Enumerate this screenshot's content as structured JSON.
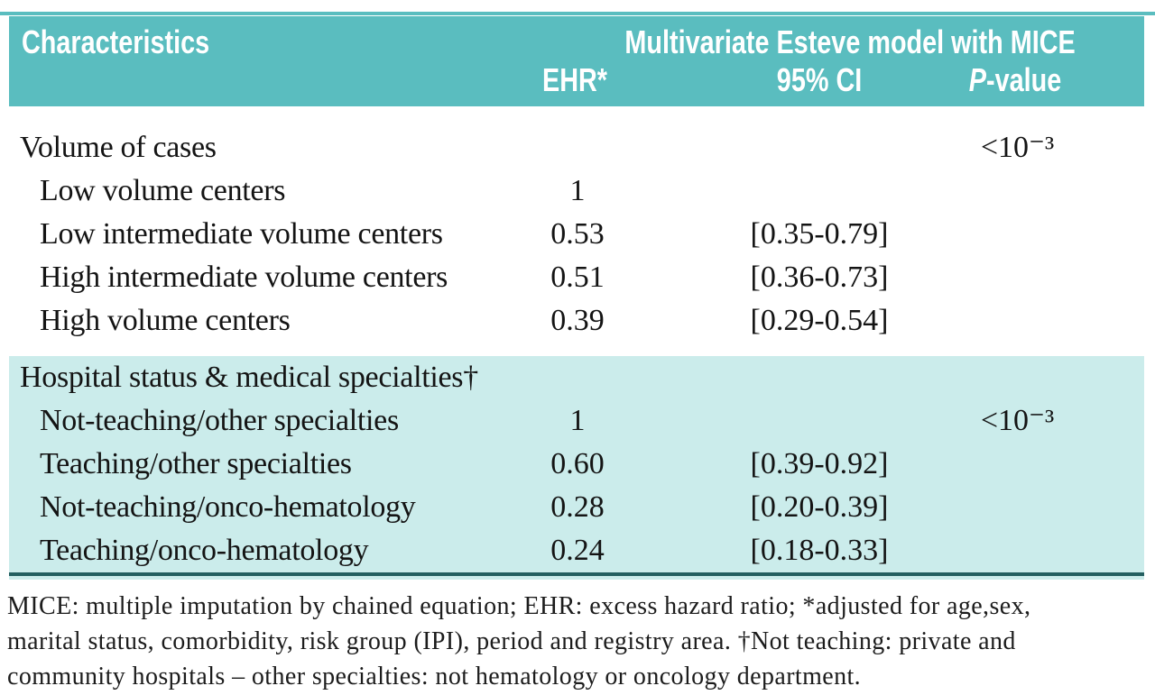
{
  "colors": {
    "header_bg": "#5abdbf",
    "header_text": "#ffffff",
    "tint_bg": "#cbeceb",
    "body_text": "#141414",
    "rule_teal": "#5abdbf",
    "rule_dark": "#235f60",
    "page_bg": "#ffffff"
  },
  "header": {
    "characteristics": "Characteristics",
    "span_title": "Multivariate Esteve model with MICE",
    "ehr": "EHR*",
    "ci": "95% CI",
    "p_italic": "P",
    "p_rest": "-value"
  },
  "sections": [
    {
      "name": "volume-of-cases-section",
      "tinted": false,
      "rows": [
        {
          "label": "Volume of cases",
          "indent": false,
          "ehr": "",
          "ci": "",
          "p": "<10⁻³"
        },
        {
          "label": "Low volume centers",
          "indent": true,
          "ehr": "1",
          "ci": "",
          "p": ""
        },
        {
          "label": "Low intermediate volume centers",
          "indent": true,
          "ehr": "0.53",
          "ci": "[0.35-0.79]",
          "p": ""
        },
        {
          "label": "High intermediate volume centers",
          "indent": true,
          "ehr": "0.51",
          "ci": "[0.36-0.73]",
          "p": ""
        },
        {
          "label": "High volume centers",
          "indent": true,
          "ehr": "0.39",
          "ci": "[0.29-0.54]",
          "p": ""
        }
      ]
    },
    {
      "name": "hospital-status-section",
      "tinted": true,
      "rows": [
        {
          "label": "Hospital status & medical specialties†",
          "indent": false,
          "ehr": "",
          "ci": "",
          "p": ""
        },
        {
          "label": "Not-teaching/other specialties",
          "indent": true,
          "ehr": "1",
          "ci": "",
          "p": "<10⁻³"
        },
        {
          "label": "Teaching/other specialties",
          "indent": true,
          "ehr": "0.60",
          "ci": "[0.39-0.92]",
          "p": ""
        },
        {
          "label": "Not-teaching/onco-hematology",
          "indent": true,
          "ehr": "0.28",
          "ci": "[0.20-0.39]",
          "p": ""
        },
        {
          "label": "Teaching/onco-hematology",
          "indent": true,
          "ehr": "0.24",
          "ci": "[0.18-0.33]",
          "p": ""
        }
      ]
    }
  ],
  "footnote": {
    "lines": [
      "MICE: multiple imputation by chained equation; EHR: excess hazard ratio; *adjusted for age,sex,",
      "marital status, comorbidity, risk group (IPI), period and registry area. †Not teaching: private and",
      "community hospitals – other specialties: not hematology or oncology department."
    ]
  }
}
